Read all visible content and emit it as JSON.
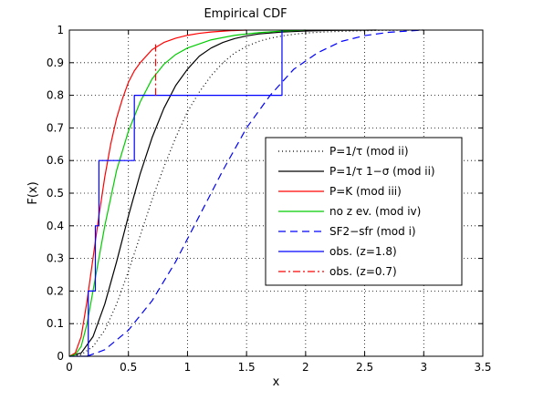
{
  "chart_data": {
    "type": "line",
    "title": "Empirical CDF",
    "xlabel": "x",
    "ylabel": "F(x)",
    "xlim": [
      0,
      3.5
    ],
    "ylim": [
      0,
      1
    ],
    "xticks": [
      0,
      0.5,
      1,
      1.5,
      2,
      2.5,
      3,
      3.5
    ],
    "yticks": [
      0,
      0.1,
      0.2,
      0.3,
      0.4,
      0.5,
      0.6,
      0.7,
      0.8,
      0.9,
      1
    ],
    "grid": true,
    "legend_position": "right",
    "series": [
      {
        "name": "P=1/τ  (mod ii)",
        "style": "dotted",
        "color": "#000000",
        "x": [
          0,
          0.1,
          0.2,
          0.3,
          0.4,
          0.5,
          0.6,
          0.7,
          0.8,
          0.9,
          1.0,
          1.1,
          1.2,
          1.3,
          1.4,
          1.5,
          1.6,
          1.7,
          1.8,
          1.9,
          2.0,
          2.2,
          2.4,
          2.6,
          2.8,
          3.0
        ],
        "y": [
          0,
          0.005,
          0.03,
          0.08,
          0.16,
          0.26,
          0.37,
          0.48,
          0.58,
          0.67,
          0.75,
          0.81,
          0.86,
          0.9,
          0.93,
          0.95,
          0.965,
          0.975,
          0.982,
          0.987,
          0.991,
          0.995,
          0.997,
          0.999,
          0.9995,
          1.0
        ]
      },
      {
        "name": "P=1/τ 1−σ (mod ii)",
        "style": "solid",
        "color": "#000000",
        "x": [
          0,
          0.1,
          0.2,
          0.3,
          0.4,
          0.5,
          0.6,
          0.7,
          0.8,
          0.9,
          1.0,
          1.1,
          1.2,
          1.3,
          1.4,
          1.5,
          1.6,
          1.8,
          2.0,
          2.2,
          2.4,
          2.6
        ],
        "y": [
          0,
          0.01,
          0.06,
          0.16,
          0.29,
          0.43,
          0.56,
          0.67,
          0.76,
          0.83,
          0.88,
          0.92,
          0.945,
          0.962,
          0.974,
          0.982,
          0.988,
          0.994,
          0.997,
          0.999,
          0.9995,
          1.0
        ]
      },
      {
        "name": "P=K (mod  iii)",
        "style": "solid",
        "color": "#ff0000",
        "x": [
          0,
          0.05,
          0.1,
          0.15,
          0.2,
          0.25,
          0.3,
          0.35,
          0.4,
          0.45,
          0.5,
          0.55,
          0.6,
          0.7,
          0.8,
          0.9,
          1.0,
          1.1,
          1.2,
          1.35,
          1.5
        ],
        "y": [
          0,
          0.01,
          0.06,
          0.17,
          0.3,
          0.43,
          0.55,
          0.65,
          0.73,
          0.79,
          0.84,
          0.875,
          0.9,
          0.94,
          0.962,
          0.975,
          0.984,
          0.99,
          0.994,
          0.998,
          1.0
        ]
      },
      {
        "name": "no z ev. (mod iv)",
        "style": "solid",
        "color": "#00cc00",
        "x": [
          0,
          0.05,
          0.1,
          0.15,
          0.2,
          0.3,
          0.4,
          0.5,
          0.6,
          0.7,
          0.8,
          0.9,
          1.0,
          1.2,
          1.4,
          1.6,
          1.8,
          2.0
        ],
        "y": [
          0,
          0.005,
          0.03,
          0.1,
          0.2,
          0.4,
          0.57,
          0.69,
          0.78,
          0.85,
          0.895,
          0.925,
          0.945,
          0.97,
          0.984,
          0.992,
          0.997,
          1.0
        ]
      },
      {
        "name": "SF2−sfr (mod i)",
        "style": "dashed",
        "color": "#0000ff",
        "x": [
          0.15,
          0.3,
          0.5,
          0.7,
          0.9,
          1.1,
          1.3,
          1.5,
          1.7,
          1.9,
          2.1,
          2.3,
          2.5,
          2.7,
          2.9,
          3.0
        ],
        "y": [
          0,
          0.02,
          0.08,
          0.17,
          0.29,
          0.43,
          0.57,
          0.7,
          0.8,
          0.88,
          0.93,
          0.965,
          0.983,
          0.993,
          0.998,
          1.0
        ]
      },
      {
        "name": "obs. (z=1.8)",
        "style": "step",
        "color": "#0000ff",
        "x": [
          0,
          0.16,
          0.16,
          0.22,
          0.22,
          0.25,
          0.25,
          0.55,
          0.55,
          1.8,
          1.8
        ],
        "y": [
          0,
          0,
          0.2,
          0.2,
          0.4,
          0.4,
          0.6,
          0.6,
          0.8,
          0.8,
          1.0
        ]
      },
      {
        "name": "obs. (z=0.7)",
        "style": "dashdot",
        "color": "#ff0000",
        "x": [
          0.73,
          0.73
        ],
        "y": [
          0.8,
          0.96
        ]
      }
    ]
  }
}
